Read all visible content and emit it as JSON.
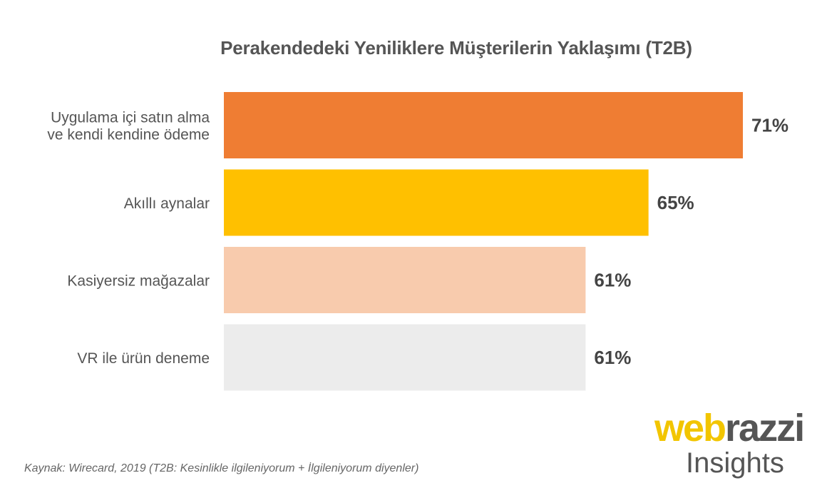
{
  "chart_data": {
    "type": "bar",
    "orientation": "horizontal",
    "title": "Perakendedeki Yeniliklere Müşterilerin Yaklaşımı (T2B)",
    "categories": [
      [
        "Uygulama içi satın alma",
        "ve kendi kendine ödeme"
      ],
      [
        "Akıllı aynalar"
      ],
      [
        "Kasiyersiz mağazalar"
      ],
      [
        "VR ile ürün deneme"
      ]
    ],
    "values": [
      71,
      65,
      61,
      61
    ],
    "value_labels": [
      "71%",
      "65%",
      "61%",
      "61%"
    ],
    "colors": [
      "#ef7d33",
      "#ffc000",
      "#f8cbad",
      "#ececec"
    ],
    "xlim": [
      38,
      71
    ],
    "grid": false,
    "legend": "none"
  },
  "source": "Kaynak: Wirecard, 2019 (T2B: Kesinlikle ilgileniyorum + İlgileniyorum diyenler)",
  "logo": {
    "word_part1": "web",
    "word_part2": "razzi",
    "subtitle": "Insights"
  }
}
